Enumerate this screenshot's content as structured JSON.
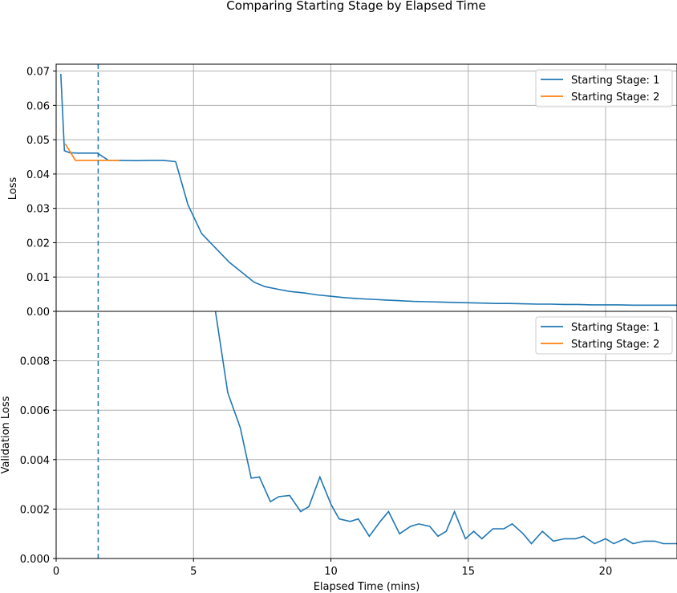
{
  "chart_data": {
    "title": "Comparing Starting Stage by Elapsed Time",
    "xlabel": "Elapsed Time (mins)",
    "xlim": [
      0,
      22.6
    ],
    "xticks": [
      "0",
      "5",
      "10",
      "15",
      "20"
    ],
    "vline_x": 1.53,
    "colors": {
      "stage1": "#1f77b4",
      "stage2": "#ff7f0e"
    },
    "grid": true,
    "subplots": [
      {
        "type": "line",
        "ylabel": "Loss",
        "ylim": [
          0,
          0.072
        ],
        "yticks": [
          "0.00",
          "0.01",
          "0.02",
          "0.03",
          "0.04",
          "0.05",
          "0.06",
          "0.07"
        ],
        "legend_position": "top-right",
        "series": [
          {
            "name": "Starting Stage: 1",
            "color": "#1f77b4",
            "x": [
              0.17,
              0.3,
              0.5,
              0.8,
              1.1,
              1.5,
              1.9,
              2.3,
              2.9,
              3.4,
              3.9,
              4.35,
              4.8,
              5.3,
              5.8,
              6.3,
              6.8,
              7.2,
              7.6,
              8.1,
              8.5,
              9.0,
              9.5,
              10.0,
              10.5,
              11.0,
              11.5,
              12.0,
              12.5,
              13.0,
              13.5,
              14.0,
              14.5,
              15.0,
              15.5,
              16.0,
              16.5,
              17.0,
              17.5,
              18.0,
              18.5,
              19.0,
              19.5,
              20.0,
              20.5,
              21.0,
              21.5,
              22.0,
              22.6
            ],
            "y": [
              0.0692,
              0.0468,
              0.0462,
              0.0461,
              0.0461,
              0.0461,
              0.044,
              0.044,
              0.0439,
              0.044,
              0.044,
              0.0436,
              0.031,
              0.0226,
              0.0185,
              0.0143,
              0.0111,
              0.0085,
              0.0072,
              0.0064,
              0.0058,
              0.0054,
              0.0048,
              0.0044,
              0.004,
              0.0037,
              0.0035,
              0.0033,
              0.0031,
              0.0029,
              0.0028,
              0.0027,
              0.0026,
              0.0025,
              0.0024,
              0.0023,
              0.0023,
              0.0022,
              0.0021,
              0.0021,
              0.002,
              0.002,
              0.0019,
              0.0019,
              0.0019,
              0.0018,
              0.0018,
              0.0018,
              0.0018
            ]
          },
          {
            "name": "Starting Stage: 2",
            "color": "#ff7f0e",
            "x": [
              0.33,
              0.7,
              1.1,
              1.5,
              1.9,
              2.3
            ],
            "y": [
              0.0488,
              0.044,
              0.044,
              0.044,
              0.044,
              0.044
            ]
          }
        ]
      },
      {
        "type": "line",
        "ylabel": "Validation Loss",
        "ylim": [
          0,
          0.01
        ],
        "yticks": [
          "0.000",
          "0.002",
          "0.004",
          "0.006",
          "0.008"
        ],
        "legend_position": "top-right",
        "series": [
          {
            "name": "Starting Stage: 1",
            "color": "#1f77b4",
            "x": [
              5.8,
              6.25,
              6.7,
              7.1,
              7.4,
              7.8,
              8.1,
              8.5,
              8.9,
              9.2,
              9.6,
              10.0,
              10.3,
              10.7,
              11.0,
              11.4,
              11.8,
              12.1,
              12.5,
              12.9,
              13.2,
              13.6,
              13.9,
              14.2,
              14.5,
              14.9,
              15.2,
              15.5,
              15.9,
              16.3,
              16.6,
              17.0,
              17.3,
              17.7,
              18.1,
              18.5,
              18.9,
              19.2,
              19.6,
              20.0,
              20.3,
              20.7,
              21.0,
              21.4,
              21.8,
              22.1,
              22.6
            ],
            "y": [
              0.01,
              0.0067,
              0.0053,
              0.00325,
              0.0033,
              0.0023,
              0.0025,
              0.00255,
              0.0019,
              0.0021,
              0.0033,
              0.0022,
              0.0016,
              0.0015,
              0.0016,
              0.0009,
              0.0015,
              0.0019,
              0.001,
              0.0013,
              0.0014,
              0.0013,
              0.0009,
              0.0011,
              0.0019,
              0.0008,
              0.0011,
              0.0008,
              0.0012,
              0.0012,
              0.0014,
              0.001,
              0.0006,
              0.0011,
              0.0007,
              0.0008,
              0.0008,
              0.0009,
              0.0006,
              0.0008,
              0.0006,
              0.0008,
              0.0006,
              0.0007,
              0.0007,
              0.0006,
              0.0006
            ]
          },
          {
            "name": "Starting Stage: 2",
            "color": "#ff7f0e",
            "x": [],
            "y": []
          }
        ]
      }
    ]
  }
}
